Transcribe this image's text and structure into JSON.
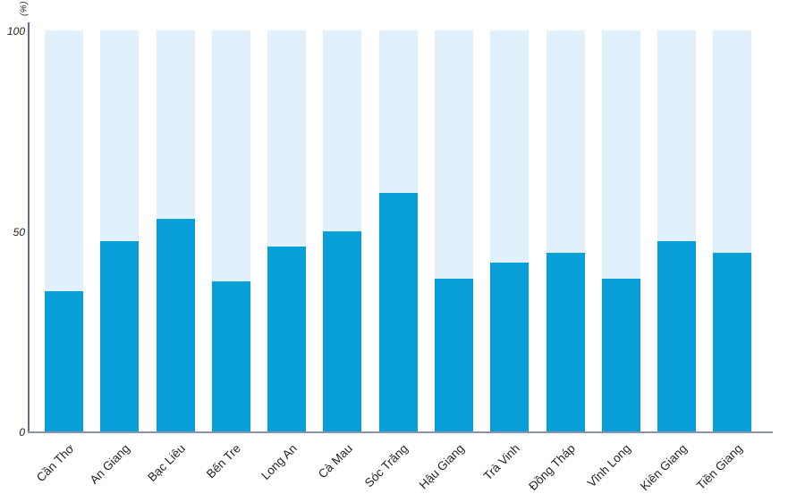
{
  "chart_data": {
    "type": "bar",
    "title": "",
    "xlabel": "",
    "ylabel": "(%)",
    "categories": [
      "Cần Thơ",
      "An Giang",
      "Bạc Liêu",
      "Bến Tre",
      "Long An",
      "Cà Mau",
      "Sóc Trăng",
      "Hậu Giang",
      "Trà Vinh",
      "Đồng Tháp",
      "Vĩnh Long",
      "Kiên Giang",
      "Tiền Giang"
    ],
    "values": [
      35,
      47.5,
      53,
      37.5,
      46,
      50,
      59.5,
      38,
      42,
      44.5,
      38,
      47.5,
      44.5
    ],
    "ylim": [
      0,
      100
    ],
    "yticks": [
      0,
      50,
      100
    ],
    "track_value": 100,
    "grid": false,
    "legend": "none",
    "colors": {
      "bar": "#089fd8",
      "track": "#e1f1fb",
      "y_axis": "#5b6ba3",
      "x_axis": "#8a93a8",
      "text": "#231f20"
    }
  }
}
